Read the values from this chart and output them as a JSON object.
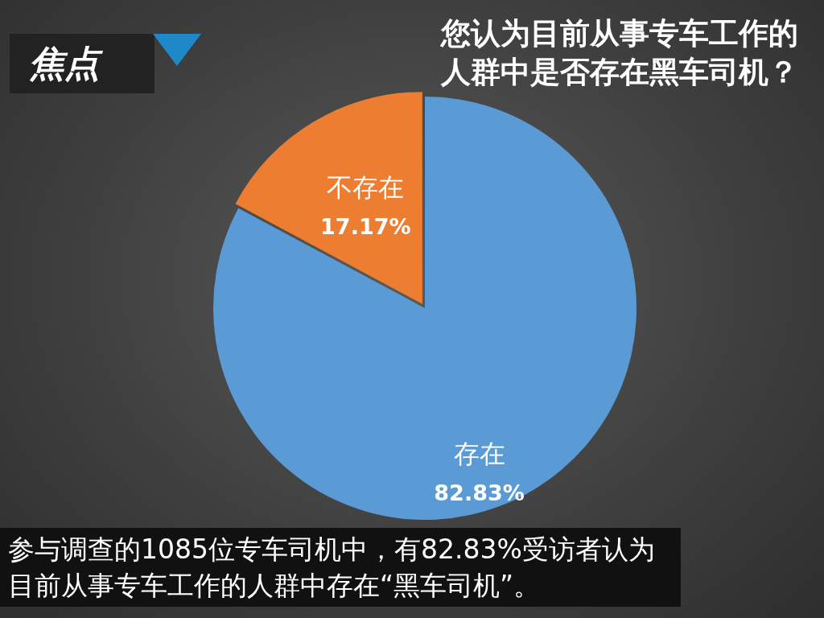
{
  "chart_data": {
    "type": "pie",
    "title": "您认为目前从事专车工作的人群中是否存在黑车司机？",
    "categories": [
      "存在",
      "不存在"
    ],
    "values": [
      82.83,
      17.17
    ],
    "colors": [
      "#5b9bd5",
      "#ed7d31"
    ],
    "value_labels": [
      "82.83%",
      "17.17%"
    ],
    "legend": false,
    "annotations": [
      "焦点",
      "参与调查的1085位专车司机中，有82.83%受访者认为目前从事专车工作的人群中存在“黑车司机”。"
    ]
  }
}
